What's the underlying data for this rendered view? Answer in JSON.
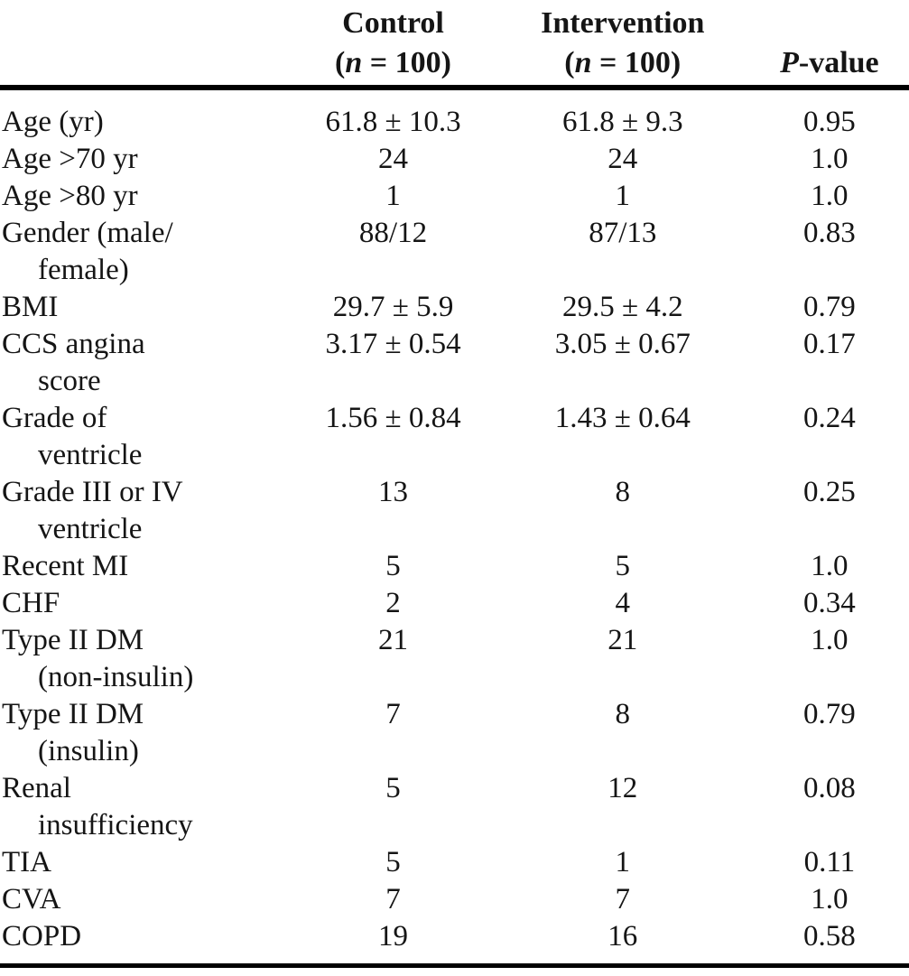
{
  "page": {
    "background_color": "#ffffff",
    "text_color": "#151515",
    "rule_color": "#000000"
  },
  "table": {
    "header": {
      "groups": [
        {
          "title": "Control",
          "sub": [
            "(",
            "n",
            " = 100)"
          ]
        },
        {
          "title": "Intervention",
          "sub": [
            "(",
            "n",
            " = 100)"
          ]
        }
      ],
      "pvalue": [
        "P",
        "-value"
      ]
    },
    "rows": [
      {
        "label_lines": [
          "Age (yr)"
        ],
        "control": "61.8 ± 10.3",
        "intervention": "61.8 ± 9.3",
        "p": "0.95"
      },
      {
        "label_lines": [
          "Age >70 yr"
        ],
        "control": "24",
        "intervention": "24",
        "p": "1.0"
      },
      {
        "label_lines": [
          "Age >80 yr"
        ],
        "control": "1",
        "intervention": "1",
        "p": "1.0"
      },
      {
        "label_lines": [
          "Gender (male/",
          "female)"
        ],
        "control": "88/12",
        "intervention": "87/13",
        "p": "0.83"
      },
      {
        "label_lines": [
          "BMI"
        ],
        "control": "29.7 ± 5.9",
        "intervention": "29.5 ± 4.2",
        "p": "0.79"
      },
      {
        "label_lines": [
          "CCS angina",
          "score"
        ],
        "control": "3.17 ± 0.54",
        "intervention": "3.05 ± 0.67",
        "p": "0.17"
      },
      {
        "label_lines": [
          "Grade of",
          "ventricle"
        ],
        "control": "1.56 ± 0.84",
        "intervention": "1.43 ± 0.64",
        "p": "0.24"
      },
      {
        "label_lines": [
          "Grade III or IV",
          "ventricle"
        ],
        "control": "13",
        "intervention": "8",
        "p": "0.25"
      },
      {
        "label_lines": [
          "Recent MI"
        ],
        "control": "5",
        "intervention": "5",
        "p": "1.0"
      },
      {
        "label_lines": [
          "CHF"
        ],
        "control": "2",
        "intervention": "4",
        "p": "0.34"
      },
      {
        "label_lines": [
          "Type II DM",
          "(non-insulin)"
        ],
        "control": "21",
        "intervention": "21",
        "p": "1.0"
      },
      {
        "label_lines": [
          "Type II DM",
          "(insulin)"
        ],
        "control": "7",
        "intervention": "8",
        "p": "0.79"
      },
      {
        "label_lines": [
          "Renal",
          "insufficiency"
        ],
        "control": "5",
        "intervention": "12",
        "p": "0.08"
      },
      {
        "label_lines": [
          "TIA"
        ],
        "control": "5",
        "intervention": "1",
        "p": "0.11"
      },
      {
        "label_lines": [
          "CVA"
        ],
        "control": "7",
        "intervention": "7",
        "p": "1.0"
      },
      {
        "label_lines": [
          "COPD"
        ],
        "control": "19",
        "intervention": "16",
        "p": "0.58"
      }
    ]
  }
}
